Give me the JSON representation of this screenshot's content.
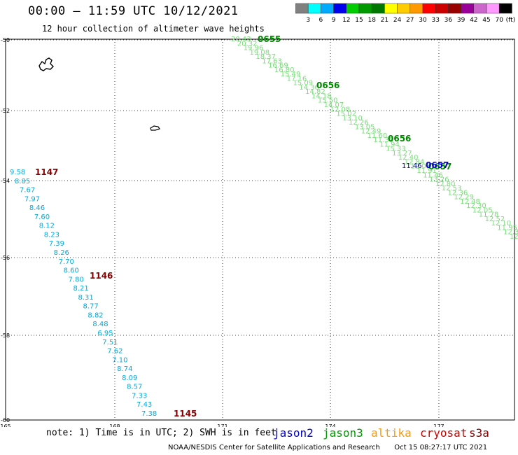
{
  "title": "00:00 — 11:59 UTC 10/12/2021",
  "subtitle": "12 hour collection of altimeter wave heights",
  "colorbar": {
    "unit": "(ft)",
    "colors": [
      "#808080",
      "#00ffff",
      "#00aaff",
      "#0000ee",
      "#00cc00",
      "#009900",
      "#007700",
      "#ffff00",
      "#ffcc00",
      "#ff9900",
      "#ff0000",
      "#cc0000",
      "#990000",
      "#990099",
      "#cc66cc",
      "#ff99ff",
      "#000000"
    ],
    "labels": [
      "3",
      "6",
      "9",
      "12",
      "15",
      "18",
      "21",
      "24",
      "27",
      "30",
      "33",
      "36",
      "39",
      "42",
      "45",
      "70"
    ]
  },
  "axes": {
    "lon_ticks": [
      "165",
      "168",
      "171",
      "174",
      "177"
    ],
    "lat_ticks": [
      "-50",
      "-52",
      "-54",
      "-56",
      "-58",
      "-60"
    ]
  },
  "tracks": [
    {
      "satellite": "jason3",
      "color": "#77dd77",
      "values": [
        "20.43",
        "20.32",
        "19.96",
        "19.08",
        "18.37",
        "17.63",
        "16.69",
        "16.80",
        "15.49",
        "17.16",
        "15.09",
        "14.36",
        "14.82",
        "14.18",
        "15.50",
        "14.07",
        "12.08",
        "15.02",
        "13.10",
        "12.26",
        "13.05",
        "12.49",
        "11.60",
        "11.35",
        "11.94",
        "15.33",
        "13.27",
        "12.40",
        "12.84",
        "12.03",
        "11.91",
        "11.46",
        "13.26",
        "12.80",
        "12.53",
        "12.36",
        "12.29",
        "12.48",
        "12.30",
        "12.05",
        "11.78",
        "12.52",
        "12.10",
        "11.95",
        "12.38",
        "12.62"
      ],
      "times": [
        {
          "label": "0655",
          "color": "#008800"
        },
        {
          "label": "0656",
          "color": "#008800"
        },
        {
          "label": "0656",
          "color": "#008800"
        },
        {
          "label": "0657",
          "color": "#008800"
        }
      ]
    },
    {
      "satellite": "jason2",
      "color": "#0000cc",
      "values": [
        "11.46"
      ],
      "times": [
        {
          "label": "0657",
          "color": "#0000cc"
        }
      ]
    },
    {
      "satellite": "cryosat",
      "color": "#00aadd",
      "values": [
        "9.58",
        "8.85",
        "7.67",
        "7.97",
        "8.46",
        "7.60",
        "8.12",
        "8.23",
        "7.39",
        "8.26",
        "7.70",
        "8.60",
        "7.80",
        "8.21",
        "8.31",
        "8.77",
        "8.82",
        "8.48",
        "6.95",
        "7.51",
        "7.62",
        "7.10",
        "8.74",
        "8.09",
        "8.57",
        "7.33",
        "7.43",
        "7.38"
      ],
      "times": [
        {
          "label": "1147",
          "color": "#880000"
        },
        {
          "label": "1146",
          "color": "#880000"
        },
        {
          "label": "1145",
          "color": "#880000"
        }
      ]
    }
  ],
  "note": "note: 1) Time is in UTC; 2) SWH is in feet",
  "legend": [
    {
      "name": "jason2",
      "color": "#0000cc"
    },
    {
      "name": "jason3",
      "color": "#009900"
    },
    {
      "name": "altika",
      "color": "#ff9900"
    },
    {
      "name": "cryosat",
      "color": "#cc0000"
    },
    {
      "name": "s3a",
      "color": "#880000"
    }
  ],
  "credit": "NOAA/NESDIS Center for Satellite Applications and Research",
  "generated": "Oct 15 08:27:17 UTC 2021"
}
